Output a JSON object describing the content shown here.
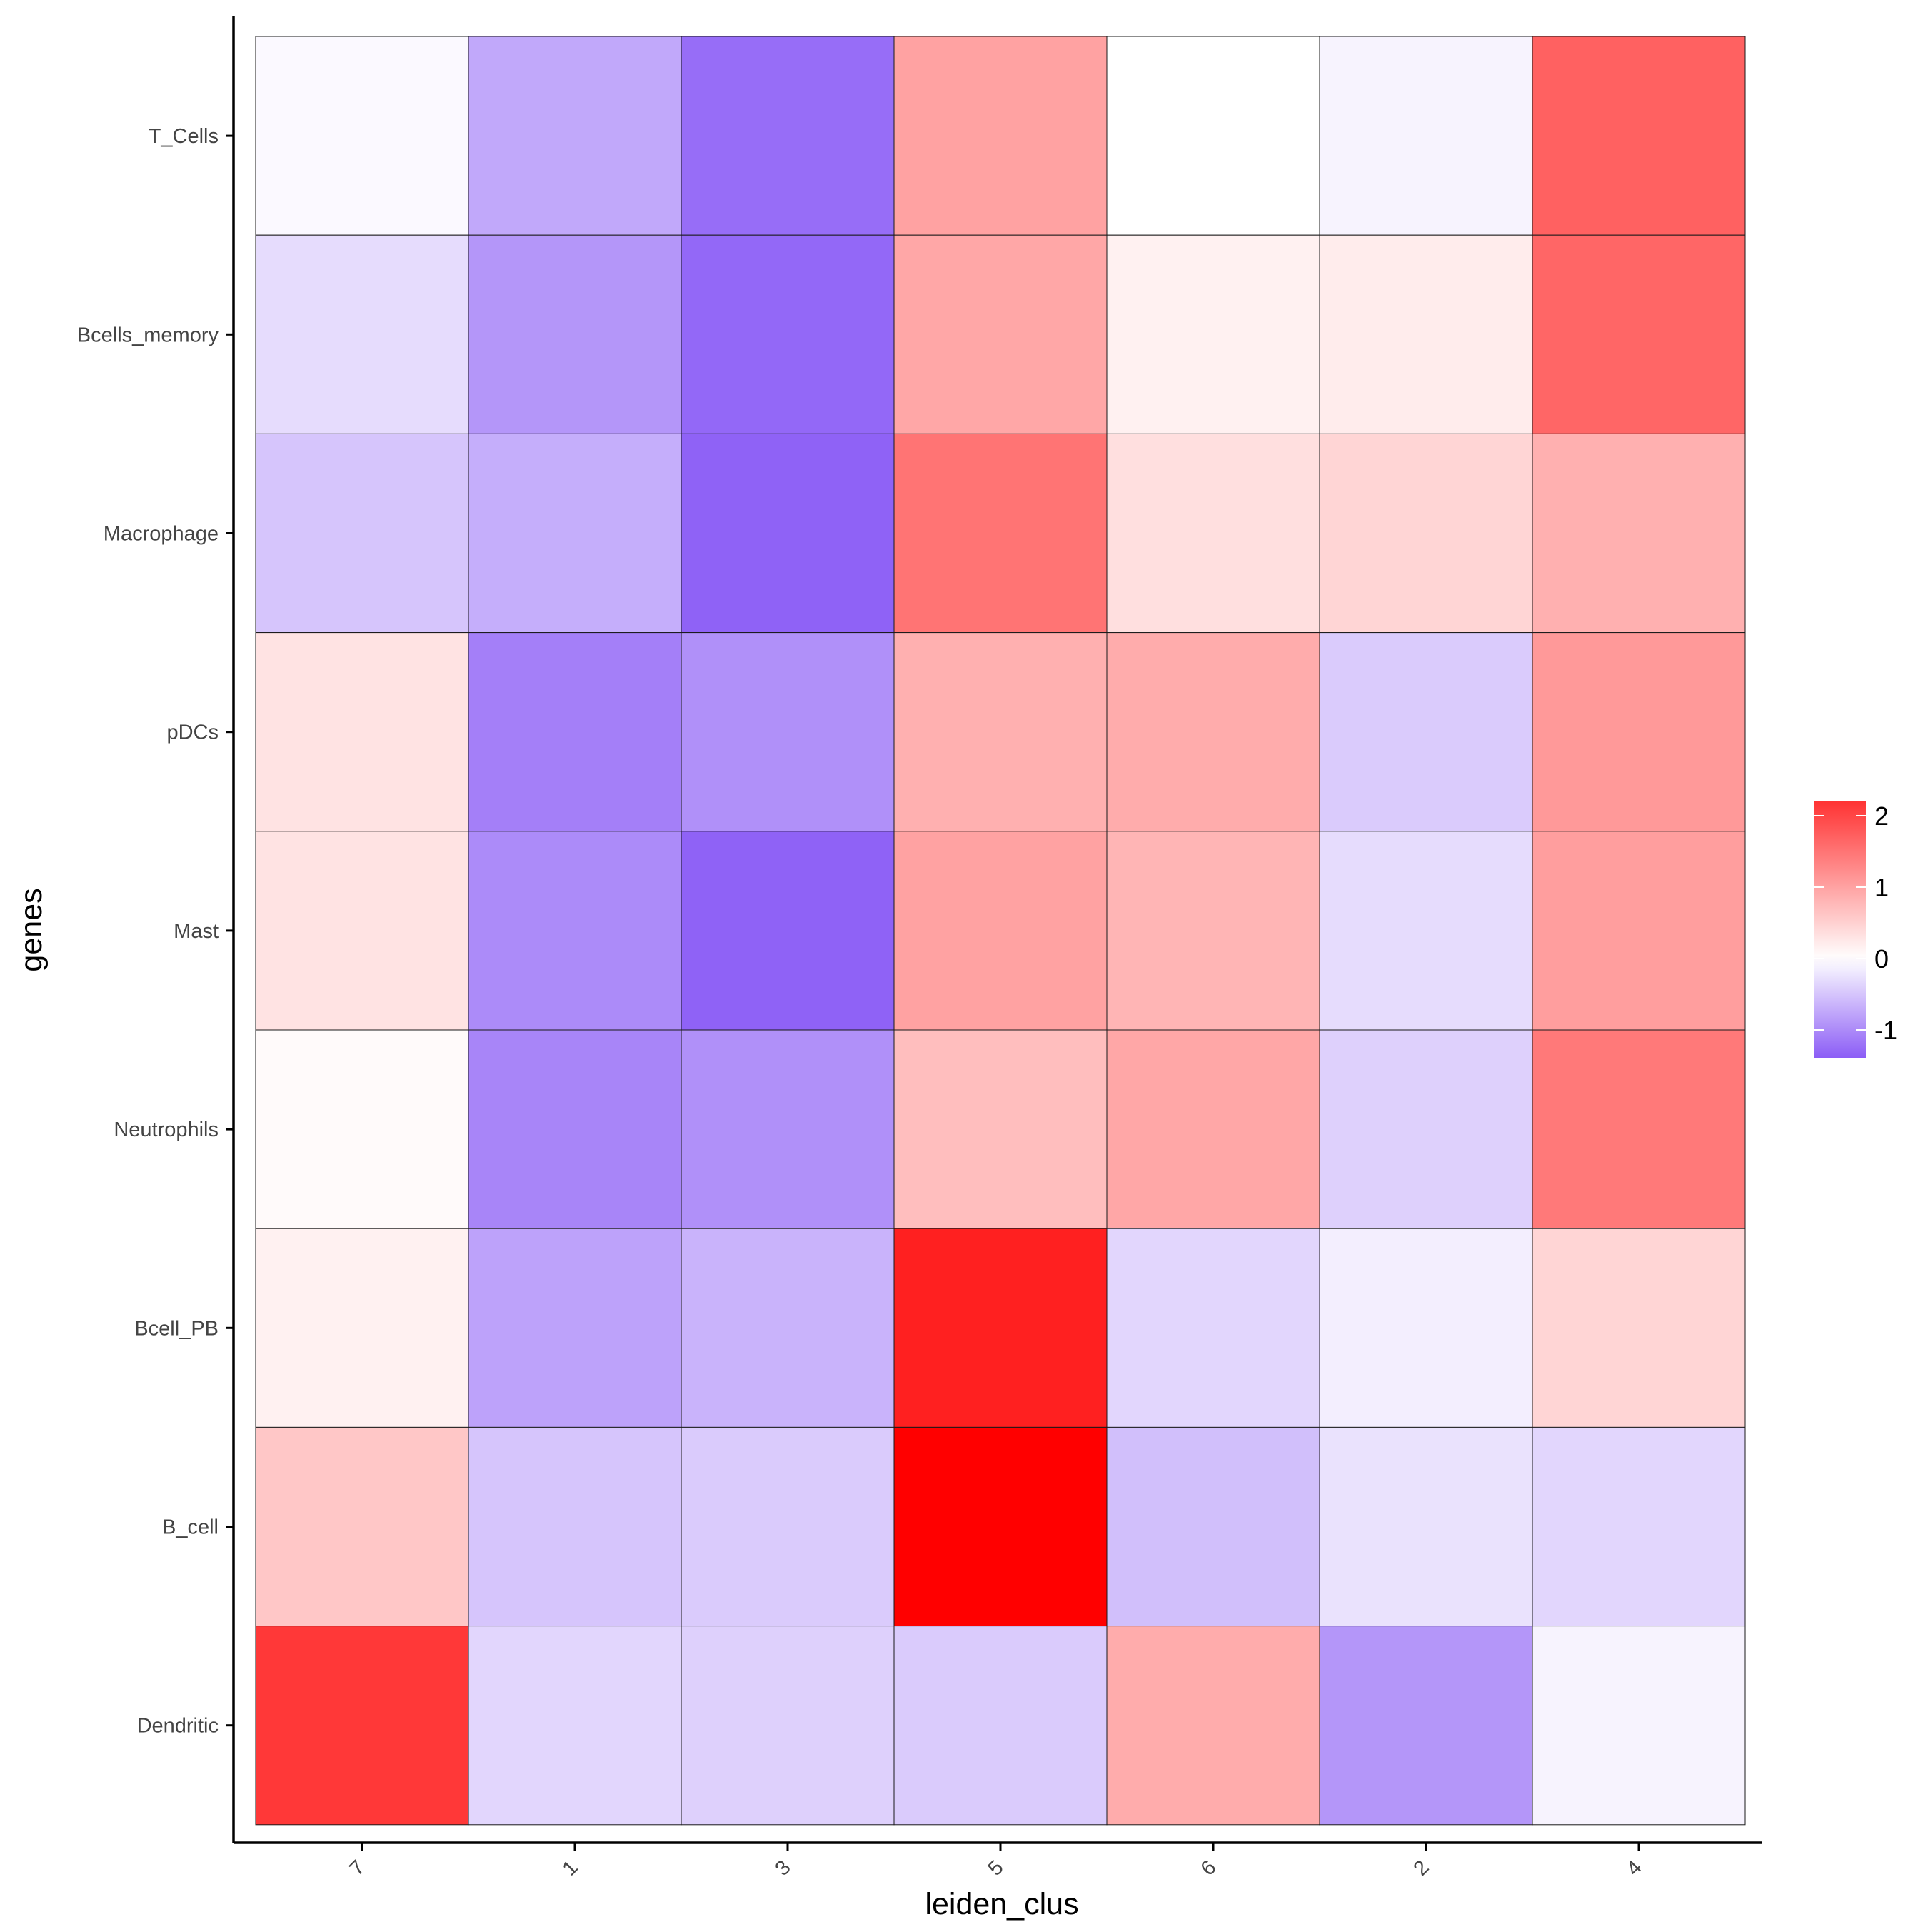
{
  "chart_data": {
    "type": "heatmap",
    "title": "",
    "xlabel": "leiden_clus",
    "ylabel": "genes",
    "x_categories": [
      "7",
      "1",
      "3",
      "5",
      "6",
      "2",
      "4"
    ],
    "y_categories": [
      "T_Cells",
      "Bcells_memory",
      "Macrophage",
      "pDCs",
      "Mast",
      "Neutrophils",
      "Bcell_PB",
      "B_cell",
      "Dendritic"
    ],
    "values": [
      [
        -0.05,
        -0.75,
        -1.25,
        1.0,
        0.0,
        -0.1,
        1.7
      ],
      [
        -0.3,
        -0.9,
        -1.3,
        0.95,
        0.15,
        0.2,
        1.65
      ],
      [
        -0.5,
        -0.7,
        -1.35,
        1.5,
        0.35,
        0.45,
        0.85
      ],
      [
        0.3,
        -1.1,
        -0.95,
        0.85,
        0.9,
        -0.45,
        1.1
      ],
      [
        0.3,
        -1.0,
        -1.35,
        1.0,
        0.8,
        -0.3,
        1.05
      ],
      [
        0.05,
        -1.05,
        -0.95,
        0.7,
        0.95,
        -0.4,
        1.45
      ],
      [
        0.15,
        -0.8,
        -0.65,
        2.4,
        -0.35,
        -0.15,
        0.45
      ],
      [
        0.6,
        -0.5,
        -0.45,
        2.75,
        -0.55,
        -0.25,
        -0.35
      ],
      [
        2.15,
        -0.35,
        -0.4,
        -0.45,
        0.9,
        -0.9,
        -0.1
      ]
    ],
    "color_scale": {
      "low": "#8b5cf6",
      "mid": "#ffffff",
      "high": "#ff0000",
      "domain": [
        -1.4,
        0,
        2.75
      ]
    },
    "legend": {
      "position": "right",
      "ticks": [
        2,
        1,
        0,
        -1
      ],
      "tick_labels": [
        "2",
        "1",
        "0",
        "-1"
      ],
      "range": [
        -1.4,
        2.2
      ]
    }
  }
}
